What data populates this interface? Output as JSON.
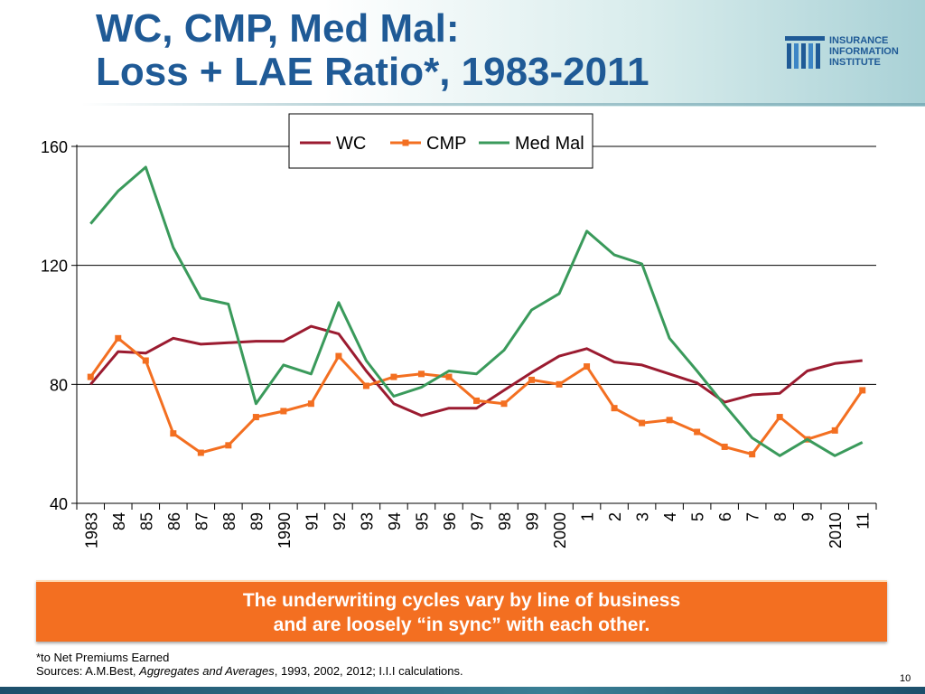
{
  "slide": {
    "title_line1": "WC, CMP, Med Mal:",
    "title_line2": "Loss + LAE Ratio*, 1983-2011",
    "logo": {
      "line1": "INSURANCE",
      "line2": "INFORMATION",
      "line3": "INSTITUTE",
      "icon": "iii-logo-icon"
    },
    "banner_line1": "The underwriting cycles vary by line of business",
    "banner_line2": "and are loosely “in sync” with each other.",
    "footnote_line1": "*to Net Premiums Earned",
    "footnote_sources_prefix": "Sources: A.M.Best, ",
    "footnote_sources_italic": "Aggregates and Averages",
    "footnote_sources_suffix": ", 1993, 2002, 2012; I.I.I calculations.",
    "page_number": "10",
    "colors": {
      "title": "#1f5a96",
      "banner": "#f36f21"
    }
  },
  "chart_data": {
    "type": "line",
    "title": "",
    "xlabel": "",
    "ylabel": "",
    "ylim": [
      40,
      160
    ],
    "yticks": [
      40,
      80,
      120,
      160
    ],
    "grid": true,
    "legend_position": "top-right",
    "categories": [
      "1983",
      "84",
      "85",
      "86",
      "87",
      "88",
      "89",
      "1990",
      "91",
      "92",
      "93",
      "94",
      "95",
      "96",
      "97",
      "98",
      "99",
      "2000",
      "1",
      "2",
      "3",
      "4",
      "5",
      "6",
      "7",
      "8",
      "9",
      "2010",
      "11"
    ],
    "series": [
      {
        "name": "WC",
        "color": "#9b1b30",
        "marker": "none",
        "values": [
          80.0,
          91.0,
          90.5,
          95.5,
          93.5,
          94.0,
          94.5,
          94.5,
          99.5,
          97.0,
          84.5,
          73.5,
          69.5,
          72.0,
          72.0,
          78.0,
          84.0,
          89.5,
          92.0,
          87.5,
          86.5,
          83.5,
          80.5,
          74.0,
          76.5,
          77.0,
          84.5,
          87.0,
          88.0
        ]
      },
      {
        "name": "CMP",
        "color": "#f36f21",
        "marker": "square",
        "values": [
          82.5,
          95.5,
          88.0,
          63.5,
          57.0,
          59.5,
          69.0,
          71.0,
          73.5,
          89.5,
          79.5,
          82.5,
          83.5,
          82.5,
          74.5,
          73.5,
          81.5,
          80.0,
          86.0,
          72.0,
          67.0,
          68.0,
          64.0,
          59.0,
          56.5,
          69.0,
          61.5,
          64.5,
          78.0
        ]
      },
      {
        "name": "Med Mal",
        "color": "#3a9a5b",
        "marker": "none",
        "values": [
          134.0,
          145.0,
          153.0,
          126.0,
          109.0,
          107.0,
          73.5,
          86.5,
          83.5,
          107.5,
          88.0,
          76.0,
          79.0,
          84.5,
          83.5,
          91.5,
          105.0,
          110.5,
          131.5,
          123.5,
          120.5,
          95.5,
          84.5,
          73.0,
          62.0,
          56.0,
          61.5,
          56.0,
          60.5
        ]
      }
    ]
  }
}
